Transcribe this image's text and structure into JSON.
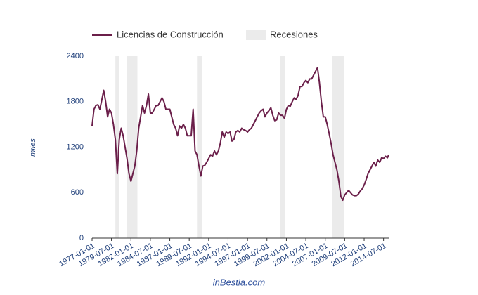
{
  "chart_data": {
    "type": "line",
    "legend_position": "top",
    "y_axis_label": "miles",
    "footer": "inBestia.com",
    "grid": false,
    "ylim": [
      0,
      2400
    ],
    "yticks": [
      0,
      600,
      1200,
      1800,
      2400
    ],
    "xlim": [
      "1977-01-01",
      "2015-03-01"
    ],
    "xticks": [
      "1977-01-01",
      "1979-07-01",
      "1982-01-01",
      "1984-07-01",
      "1987-01-01",
      "1989-07-01",
      "1992-01-01",
      "1994-07-01",
      "1997-01-01",
      "1999-07-01",
      "2002-01-01",
      "2004-07-01",
      "2007-01-01",
      "2009-07-01",
      "2012-01-01",
      "2014-07-01"
    ],
    "recessions": {
      "name": "Recesiones",
      "color": "#ebebeb",
      "periods": [
        [
          "1980-01-01",
          "1980-07-01"
        ],
        [
          "1981-07-01",
          "1982-11-01"
        ],
        [
          "1990-07-01",
          "1991-03-01"
        ],
        [
          "2001-03-01",
          "2001-11-01"
        ],
        [
          "2007-12-01",
          "2009-06-01"
        ]
      ]
    },
    "x": [
      "1977-01-01",
      "1977-04-01",
      "1977-07-01",
      "1977-10-01",
      "1978-01-01",
      "1978-04-01",
      "1978-07-01",
      "1978-10-01",
      "1979-01-01",
      "1979-04-01",
      "1979-07-01",
      "1979-10-01",
      "1980-01-01",
      "1980-04-01",
      "1980-07-01",
      "1980-10-01",
      "1981-01-01",
      "1981-04-01",
      "1981-07-01",
      "1981-10-01",
      "1982-01-01",
      "1982-04-01",
      "1982-07-01",
      "1982-10-01",
      "1983-01-01",
      "1983-04-01",
      "1983-07-01",
      "1983-10-01",
      "1984-01-01",
      "1984-04-01",
      "1984-07-01",
      "1984-10-01",
      "1985-01-01",
      "1985-04-01",
      "1985-07-01",
      "1985-10-01",
      "1986-01-01",
      "1986-04-01",
      "1986-07-01",
      "1986-10-01",
      "1987-01-01",
      "1987-04-01",
      "1987-07-01",
      "1987-10-01",
      "1988-01-01",
      "1988-04-01",
      "1988-07-01",
      "1988-10-01",
      "1989-01-01",
      "1989-04-01",
      "1989-07-01",
      "1989-10-01",
      "1990-01-01",
      "1990-04-01",
      "1990-07-01",
      "1990-10-01",
      "1991-01-01",
      "1991-04-01",
      "1991-07-01",
      "1991-10-01",
      "1992-01-01",
      "1992-04-01",
      "1992-07-01",
      "1992-10-01",
      "1993-01-01",
      "1993-04-01",
      "1993-07-01",
      "1993-10-01",
      "1994-01-01",
      "1994-04-01",
      "1994-07-01",
      "1994-10-01",
      "1995-01-01",
      "1995-04-01",
      "1995-07-01",
      "1995-10-01",
      "1996-01-01",
      "1996-04-01",
      "1996-07-01",
      "1996-10-01",
      "1997-01-01",
      "1997-04-01",
      "1997-07-01",
      "1997-10-01",
      "1998-01-01",
      "1998-04-01",
      "1998-07-01",
      "1998-10-01",
      "1999-01-01",
      "1999-04-01",
      "1999-07-01",
      "1999-10-01",
      "2000-01-01",
      "2000-04-01",
      "2000-07-01",
      "2000-10-01",
      "2001-01-01",
      "2001-04-01",
      "2001-07-01",
      "2001-10-01",
      "2002-01-01",
      "2002-04-01",
      "2002-07-01",
      "2002-10-01",
      "2003-01-01",
      "2003-04-01",
      "2003-07-01",
      "2003-10-01",
      "2004-01-01",
      "2004-04-01",
      "2004-07-01",
      "2004-10-01",
      "2005-01-01",
      "2005-04-01",
      "2005-07-01",
      "2005-10-01",
      "2006-01-01",
      "2006-04-01",
      "2006-07-01",
      "2006-10-01",
      "2007-01-01",
      "2007-04-01",
      "2007-07-01",
      "2007-10-01",
      "2008-01-01",
      "2008-04-01",
      "2008-07-01",
      "2008-10-01",
      "2009-01-01",
      "2009-04-01",
      "2009-07-01",
      "2009-10-01",
      "2010-01-01",
      "2010-04-01",
      "2010-07-01",
      "2010-10-01",
      "2011-01-01",
      "2011-04-01",
      "2011-07-01",
      "2011-10-01",
      "2012-01-01",
      "2012-04-01",
      "2012-07-01",
      "2012-10-01",
      "2013-01-01",
      "2013-04-01",
      "2013-07-01",
      "2013-10-01",
      "2014-01-01",
      "2014-04-01",
      "2014-07-01",
      "2014-10-01",
      "2015-01-01",
      "2015-03-01"
    ],
    "series": [
      {
        "name": "Licencias de Construcción",
        "color": "#6b1f4a",
        "values": [
          1480,
          1700,
          1750,
          1760,
          1700,
          1820,
          1950,
          1800,
          1600,
          1700,
          1650,
          1500,
          1300,
          850,
          1300,
          1450,
          1350,
          1200,
          1050,
          850,
          750,
          850,
          950,
          1150,
          1450,
          1600,
          1750,
          1650,
          1750,
          1900,
          1650,
          1650,
          1700,
          1750,
          1750,
          1800,
          1850,
          1800,
          1700,
          1700,
          1700,
          1600,
          1500,
          1450,
          1350,
          1480,
          1450,
          1500,
          1450,
          1350,
          1350,
          1350,
          1700,
          1150,
          1100,
          950,
          820,
          950,
          960,
          1000,
          1050,
          1100,
          1080,
          1150,
          1100,
          1150,
          1250,
          1400,
          1330,
          1400,
          1380,
          1400,
          1280,
          1300,
          1400,
          1420,
          1400,
          1450,
          1430,
          1420,
          1400,
          1430,
          1450,
          1500,
          1550,
          1600,
          1650,
          1680,
          1700,
          1600,
          1650,
          1680,
          1720,
          1620,
          1550,
          1560,
          1650,
          1620,
          1620,
          1580,
          1700,
          1750,
          1740,
          1800,
          1850,
          1830,
          1880,
          2000,
          2000,
          2050,
          2080,
          2050,
          2100,
          2100,
          2150,
          2200,
          2250,
          2050,
          1800,
          1600,
          1600,
          1500,
          1380,
          1250,
          1100,
          1000,
          900,
          750,
          550,
          500,
          570,
          600,
          630,
          600,
          570,
          560,
          560,
          580,
          620,
          650,
          700,
          770,
          850,
          900,
          950,
          1000,
          950,
          1030,
          1000,
          1060,
          1050,
          1080,
          1060,
          1100
        ]
      }
    ]
  }
}
